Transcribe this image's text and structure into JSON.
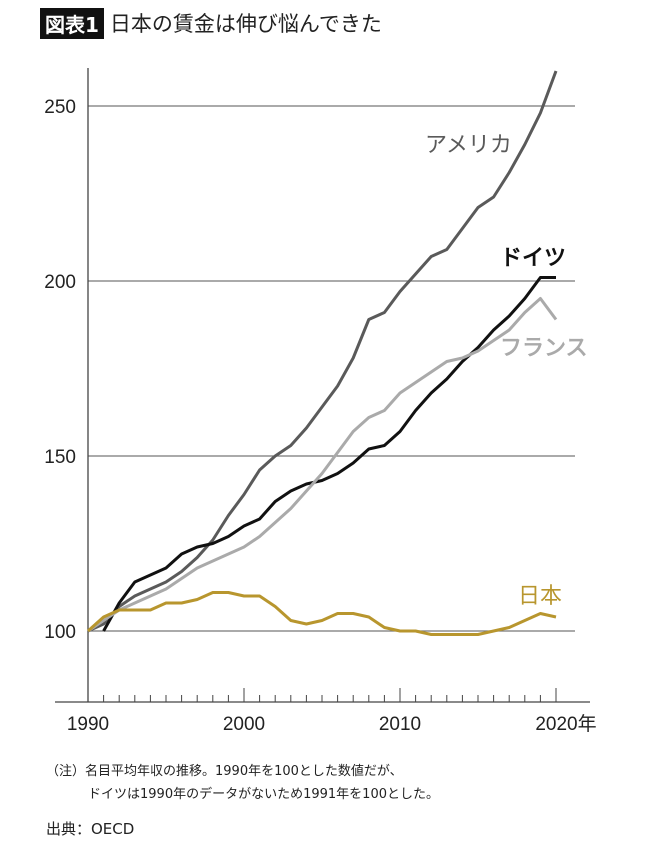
{
  "title": {
    "badge": "図表1",
    "text": "日本の賃金は伸び悩んできた"
  },
  "chart_data": {
    "type": "line",
    "title": "日本の賃金は伸び悩んできた",
    "xlabel": "",
    "ylabel": "",
    "xlim": [
      1990,
      2022
    ],
    "ylim": [
      80,
      261
    ],
    "xticks": [
      1990,
      2000,
      2010,
      2020
    ],
    "xtick_labels": [
      "1990",
      "2000",
      "2010",
      "2020年"
    ],
    "yticks": [
      100,
      150,
      200,
      250
    ],
    "ytick_labels": [
      "100",
      "150",
      "200",
      "250"
    ],
    "grid": "horizontal",
    "series": [
      {
        "name": "アメリカ",
        "color": "#5a5a5a",
        "x": [
          1990,
          1991,
          1992,
          1993,
          1994,
          1995,
          1996,
          1997,
          1998,
          1999,
          2000,
          2001,
          2002,
          2003,
          2004,
          2005,
          2006,
          2007,
          2008,
          2009,
          2010,
          2011,
          2012,
          2013,
          2014,
          2015,
          2016,
          2017,
          2018,
          2019,
          2020
        ],
        "values": [
          100,
          102,
          107,
          110,
          112,
          114,
          117,
          121,
          126,
          133,
          139,
          146,
          150,
          153,
          158,
          164,
          170,
          178,
          189,
          191,
          197,
          202,
          207,
          209,
          215,
          221,
          224,
          231,
          239,
          248,
          260
        ]
      },
      {
        "name": "ドイツ",
        "color": "#111111",
        "x": [
          1991,
          1992,
          1993,
          1994,
          1995,
          1996,
          1997,
          1998,
          1999,
          2000,
          2001,
          2002,
          2003,
          2004,
          2005,
          2006,
          2007,
          2008,
          2009,
          2010,
          2011,
          2012,
          2013,
          2014,
          2015,
          2016,
          2017,
          2018,
          2019,
          2020
        ],
        "values": [
          100,
          108,
          114,
          116,
          118,
          122,
          124,
          125,
          127,
          130,
          132,
          137,
          140,
          142,
          143,
          145,
          148,
          152,
          153,
          157,
          163,
          168,
          172,
          177,
          181,
          186,
          190,
          195,
          201,
          201
        ]
      },
      {
        "name": "フランス",
        "color": "#aaaaaa",
        "x": [
          1990,
          1991,
          1992,
          1993,
          1994,
          1995,
          1996,
          1997,
          1998,
          1999,
          2000,
          2001,
          2002,
          2003,
          2004,
          2005,
          2006,
          2007,
          2008,
          2009,
          2010,
          2011,
          2012,
          2013,
          2014,
          2015,
          2016,
          2017,
          2018,
          2019,
          2020
        ],
        "values": [
          100,
          103,
          106,
          108,
          110,
          112,
          115,
          118,
          120,
          122,
          124,
          127,
          131,
          135,
          140,
          145,
          151,
          157,
          161,
          163,
          168,
          171,
          174,
          177,
          178,
          180,
          183,
          186,
          191,
          195,
          189
        ]
      },
      {
        "name": "日本",
        "color": "#b8962e",
        "x": [
          1990,
          1991,
          1992,
          1993,
          1994,
          1995,
          1996,
          1997,
          1998,
          1999,
          2000,
          2001,
          2002,
          2003,
          2004,
          2005,
          2006,
          2007,
          2008,
          2009,
          2010,
          2011,
          2012,
          2013,
          2014,
          2015,
          2016,
          2017,
          2018,
          2019,
          2020
        ],
        "values": [
          100,
          104,
          106,
          106,
          106,
          108,
          108,
          109,
          111,
          111,
          110,
          110,
          107,
          103,
          102,
          103,
          105,
          105,
          104,
          101,
          100,
          100,
          99,
          99,
          99,
          99,
          100,
          101,
          103,
          105,
          104
        ]
      }
    ]
  },
  "notes": {
    "line1": "（注）名目平均年収の推移。1990年を100とした数値だが、",
    "line2": "ドイツは1990年のデータがないため1991年を100とした。",
    "source": "出典：OECD"
  }
}
